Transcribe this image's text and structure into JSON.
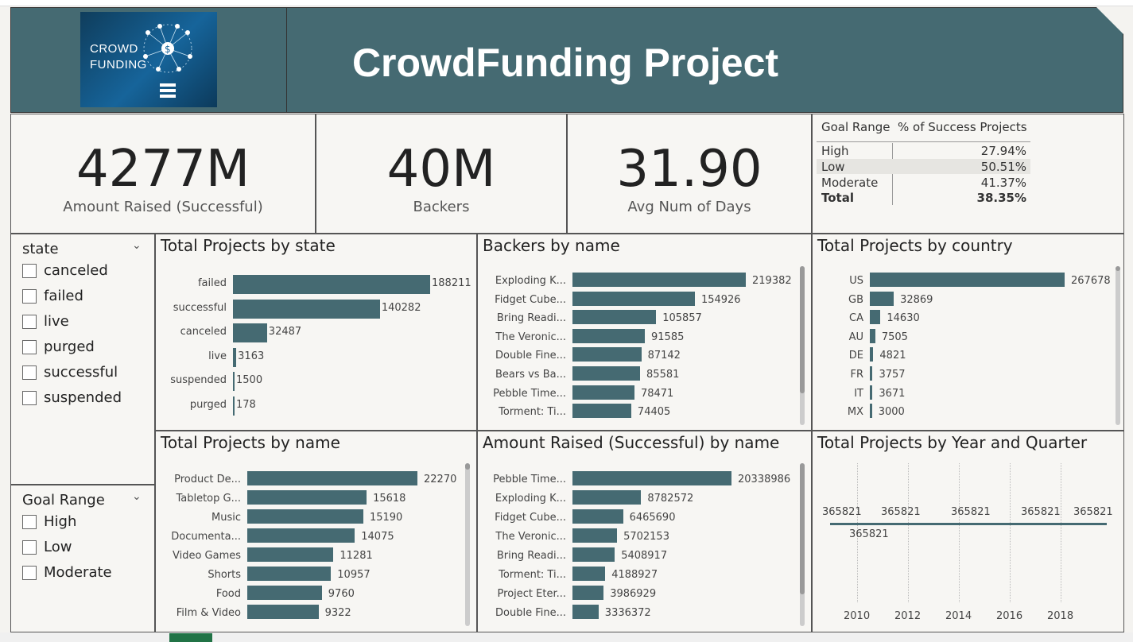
{
  "header": {
    "logo_line1": "CROWD",
    "logo_line2": "FUNDING",
    "title": "CrowdFunding Project"
  },
  "kpis": [
    {
      "value": "4277M",
      "label": "Amount Raised (Successful)"
    },
    {
      "value": "40M",
      "label": "Backers"
    },
    {
      "value": "31.90",
      "label": "Avg Num of Days"
    }
  ],
  "goal_table": {
    "headers": [
      "Goal Range",
      "% of Success Projects"
    ],
    "rows": [
      {
        "range": "High",
        "pct": "27.94%"
      },
      {
        "range": "Low",
        "pct": "50.51%"
      },
      {
        "range": "Moderate",
        "pct": "41.37%"
      }
    ],
    "total": {
      "range": "Total",
      "pct": "38.35%"
    }
  },
  "state_slicer": {
    "title": "state",
    "options": [
      "canceled",
      "failed",
      "live",
      "purged",
      "successful",
      "suspended"
    ]
  },
  "goal_slicer": {
    "title": "Goal Range",
    "options": [
      "High",
      "Low",
      "Moderate"
    ]
  },
  "chart_data": [
    {
      "id": "state",
      "type": "bar",
      "title": "Total Projects by state",
      "categories": [
        "failed",
        "successful",
        "canceled",
        "live",
        "suspended",
        "purged"
      ],
      "values": [
        188211,
        140282,
        32487,
        3163,
        1500,
        178
      ]
    },
    {
      "id": "backers",
      "type": "bar",
      "title": "Backers by name",
      "categories": [
        "Exploding K...",
        "Fidget Cube...",
        "Bring Readi...",
        "The Veronic...",
        "Double Fine...",
        "Bears vs Ba...",
        "Pebble Time...",
        "Torment: Ti..."
      ],
      "values": [
        219382,
        154926,
        105857,
        91585,
        87142,
        85581,
        78471,
        74405
      ]
    },
    {
      "id": "country",
      "type": "bar",
      "title": "Total Projects by country",
      "categories": [
        "US",
        "GB",
        "CA",
        "AU",
        "DE",
        "FR",
        "IT",
        "MX"
      ],
      "values": [
        267678,
        32869,
        14630,
        7505,
        4821,
        3757,
        3671,
        3000
      ]
    },
    {
      "id": "name",
      "type": "bar",
      "title": "Total Projects by name",
      "categories": [
        "Product De...",
        "Tabletop G...",
        "Music",
        "Documenta...",
        "Video Games",
        "Shorts",
        "Food",
        "Film & Video"
      ],
      "values": [
        22270,
        15618,
        15190,
        14075,
        11281,
        10957,
        9760,
        9322
      ]
    },
    {
      "id": "amount",
      "type": "bar",
      "title": "Amount Raised (Successful) by name",
      "categories": [
        "Pebble Time...",
        "Exploding K...",
        "Fidget Cube...",
        "The Veronic...",
        "Bring Readi...",
        "Torment: Ti...",
        "Project Eter...",
        "Double Fine..."
      ],
      "values": [
        20338986,
        8782572,
        6465690,
        5702153,
        5408917,
        4188927,
        3986929,
        3336372
      ]
    },
    {
      "id": "yearq",
      "type": "line",
      "title": "Total Projects by Year and Quarter",
      "x_ticks": [
        "2010",
        "2012",
        "2014",
        "2016",
        "2018"
      ],
      "point_labels": [
        "365821",
        "365821",
        "365821",
        "365821",
        "365821",
        "365821"
      ],
      "values": [
        365821,
        365821,
        365821,
        365821,
        365821,
        365821
      ]
    }
  ],
  "colors": {
    "accent": "#456a72",
    "background": "#f7f6f3"
  }
}
